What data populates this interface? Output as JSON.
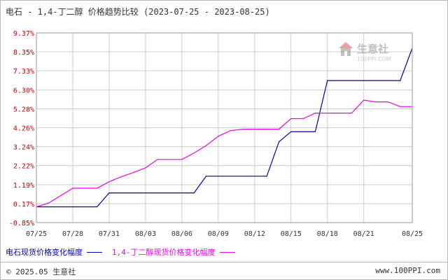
{
  "title": {
    "main": "电石 - 1,4-丁二醇 价格趋势比较",
    "range": "(2023-07-25 - 2023-08-25)"
  },
  "logo": {
    "name": "生意社",
    "url": "100PPI.COM"
  },
  "footer": {
    "copyright": "© 2025.05 生意社",
    "site": "www.100PPI.com"
  },
  "colors": {
    "series1": "#0000aa",
    "series2": "#ee00ee",
    "grid": "#cccccc",
    "ytick": "#cc0000",
    "xtick": "#333333"
  },
  "chart_data": {
    "type": "line",
    "title": "电石 - 1,4-丁二醇 价格趋势比较",
    "subtitle": "(2023-07-25 - 2023-08-25)",
    "y_unit": "%",
    "ylim": [
      -0.85,
      9.37
    ],
    "yticks": [
      "9.37%",
      "8.35%",
      "7.33%",
      "6.30%",
      "5.28%",
      "4.26%",
      "3.24%",
      "2.22%",
      "1.19%",
      "0.17%",
      "-0.85%"
    ],
    "ytick_values": [
      9.37,
      8.35,
      7.33,
      6.3,
      5.28,
      4.26,
      3.24,
      2.22,
      1.19,
      0.17,
      -0.85
    ],
    "xticks": [
      "07/25",
      "07/28",
      "07/31",
      "08/03",
      "08/06",
      "08/09",
      "08/12",
      "08/15",
      "08/18",
      "08/21",
      "08/25"
    ],
    "xlim": [
      "07/25",
      "08/25"
    ],
    "grid": true,
    "legend_position": "bottom",
    "series": [
      {
        "name": "电石现货价格变化幅度",
        "color": "#0000aa",
        "points": [
          [
            "07/25",
            0.0
          ],
          [
            "07/30",
            0.0
          ],
          [
            "07/31",
            0.75
          ],
          [
            "08/07",
            0.75
          ],
          [
            "08/08",
            1.65
          ],
          [
            "08/13",
            1.65
          ],
          [
            "08/14",
            3.5
          ],
          [
            "08/15",
            4.05
          ],
          [
            "08/17",
            4.05
          ],
          [
            "08/18",
            6.8
          ],
          [
            "08/24",
            6.8
          ],
          [
            "08/25",
            8.55
          ]
        ]
      },
      {
        "name": "1,4-丁二醇现货价格变化幅度",
        "color": "#ee00ee",
        "points": [
          [
            "07/25",
            0.0
          ],
          [
            "07/26",
            0.2
          ],
          [
            "07/28",
            1.0
          ],
          [
            "07/30",
            1.0
          ],
          [
            "07/31",
            1.35
          ],
          [
            "08/01",
            1.62
          ],
          [
            "08/02",
            1.85
          ],
          [
            "08/03",
            2.1
          ],
          [
            "08/04",
            2.55
          ],
          [
            "08/06",
            2.55
          ],
          [
            "08/07",
            2.9
          ],
          [
            "08/08",
            3.3
          ],
          [
            "08/09",
            3.8
          ],
          [
            "08/10",
            4.1
          ],
          [
            "08/11",
            4.18
          ],
          [
            "08/14",
            4.18
          ],
          [
            "08/15",
            4.75
          ],
          [
            "08/16",
            4.75
          ],
          [
            "08/17",
            5.05
          ],
          [
            "08/20",
            5.05
          ],
          [
            "08/21",
            5.75
          ],
          [
            "08/22",
            5.65
          ],
          [
            "08/23",
            5.65
          ],
          [
            "08/24",
            5.4
          ],
          [
            "08/25",
            5.4
          ]
        ]
      }
    ]
  }
}
